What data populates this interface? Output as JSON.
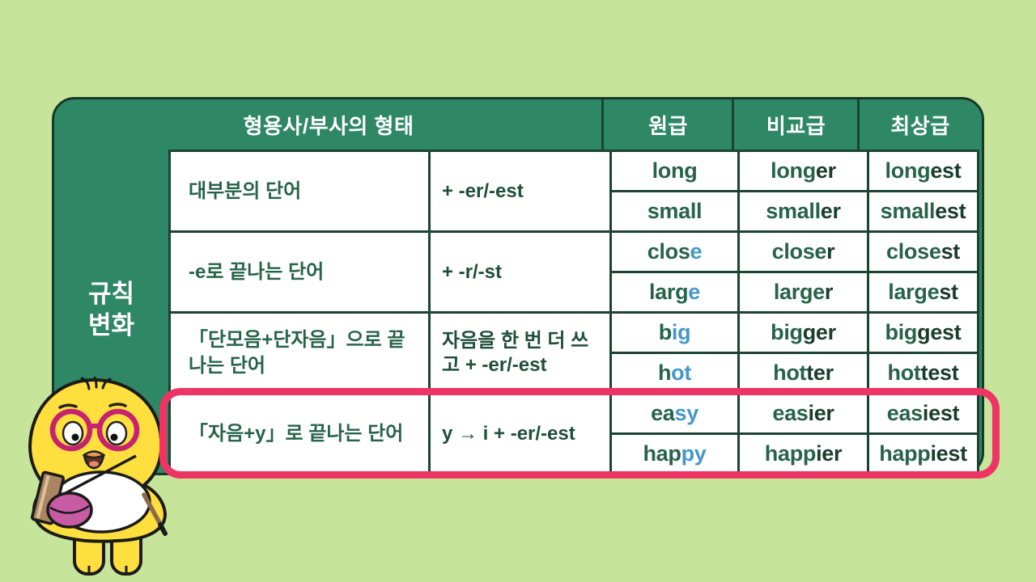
{
  "table": {
    "header": {
      "form_label": "형용사/부사의 형태",
      "cols": [
        "원급",
        "비교급",
        "최상급"
      ]
    },
    "group_label": [
      "규칙",
      "변화"
    ],
    "groups": [
      {
        "desc": "대부분의 단어",
        "rule": "+ -er/-est",
        "words": [
          {
            "pos": [
              {
                "t": "long",
                "k": "n"
              }
            ],
            "comp": [
              {
                "t": "long",
                "k": "n"
              },
              {
                "t": "er",
                "k": "s"
              }
            ],
            "sup": [
              {
                "t": "long",
                "k": "n"
              },
              {
                "t": "est",
                "k": "s"
              }
            ]
          },
          {
            "pos": [
              {
                "t": "small",
                "k": "n"
              }
            ],
            "comp": [
              {
                "t": "small",
                "k": "n"
              },
              {
                "t": "er",
                "k": "s"
              }
            ],
            "sup": [
              {
                "t": "small",
                "k": "n"
              },
              {
                "t": "est",
                "k": "s"
              }
            ]
          }
        ]
      },
      {
        "desc": "-e로 끝나는 단어",
        "rule": "+ -r/-st",
        "words": [
          {
            "pos": [
              {
                "t": "clos",
                "k": "n"
              },
              {
                "t": "e",
                "k": "b"
              }
            ],
            "comp": [
              {
                "t": "close",
                "k": "n"
              },
              {
                "t": "r",
                "k": "s"
              }
            ],
            "sup": [
              {
                "t": "close",
                "k": "n"
              },
              {
                "t": "st",
                "k": "s"
              }
            ]
          },
          {
            "pos": [
              {
                "t": "larg",
                "k": "n"
              },
              {
                "t": "e",
                "k": "b"
              }
            ],
            "comp": [
              {
                "t": "large",
                "k": "n"
              },
              {
                "t": "r",
                "k": "s"
              }
            ],
            "sup": [
              {
                "t": "large",
                "k": "n"
              },
              {
                "t": "st",
                "k": "s"
              }
            ]
          }
        ]
      },
      {
        "desc": "「단모음+단자음」으로 끝나는 단어",
        "rule": "자음을 한 번 더 쓰고 + -er/-est",
        "words": [
          {
            "pos": [
              {
                "t": "b",
                "k": "n"
              },
              {
                "t": "ig",
                "k": "b"
              }
            ],
            "comp": [
              {
                "t": "big",
                "k": "n"
              },
              {
                "t": "ger",
                "k": "s"
              }
            ],
            "sup": [
              {
                "t": "big",
                "k": "n"
              },
              {
                "t": "gest",
                "k": "s"
              }
            ]
          },
          {
            "pos": [
              {
                "t": "h",
                "k": "n"
              },
              {
                "t": "ot",
                "k": "b"
              }
            ],
            "comp": [
              {
                "t": "hot",
                "k": "n"
              },
              {
                "t": "ter",
                "k": "s"
              }
            ],
            "sup": [
              {
                "t": "hot",
                "k": "n"
              },
              {
                "t": "test",
                "k": "s"
              }
            ]
          }
        ]
      },
      {
        "desc": "「자음+y」로 끝나는 단어",
        "rule": "y → i + -er/-est",
        "words": [
          {
            "pos": [
              {
                "t": "ea",
                "k": "n"
              },
              {
                "t": "sy",
                "k": "b"
              }
            ],
            "comp": [
              {
                "t": "eas",
                "k": "n"
              },
              {
                "t": "ier",
                "k": "s"
              }
            ],
            "sup": [
              {
                "t": "eas",
                "k": "n"
              },
              {
                "t": "iest",
                "k": "s"
              }
            ]
          },
          {
            "pos": [
              {
                "t": "hap",
                "k": "n"
              },
              {
                "t": "py",
                "k": "b"
              }
            ],
            "comp": [
              {
                "t": "happ",
                "k": "n"
              },
              {
                "t": "ier",
                "k": "s"
              }
            ],
            "sup": [
              {
                "t": "happ",
                "k": "n"
              },
              {
                "t": "iest",
                "k": "s"
              }
            ]
          }
        ]
      }
    ],
    "highlighted_group_index": 3
  },
  "colors": {
    "background": "#c6e59b",
    "table_green": "#2e8765",
    "grid_line": "#1c4433",
    "text_green": "#27634a",
    "text_bold_green": "#1a3d2c",
    "text_blue": "#4598c7",
    "highlight_pink": "#ee3465"
  },
  "mascot_icon": "chick-teacher-mascot"
}
